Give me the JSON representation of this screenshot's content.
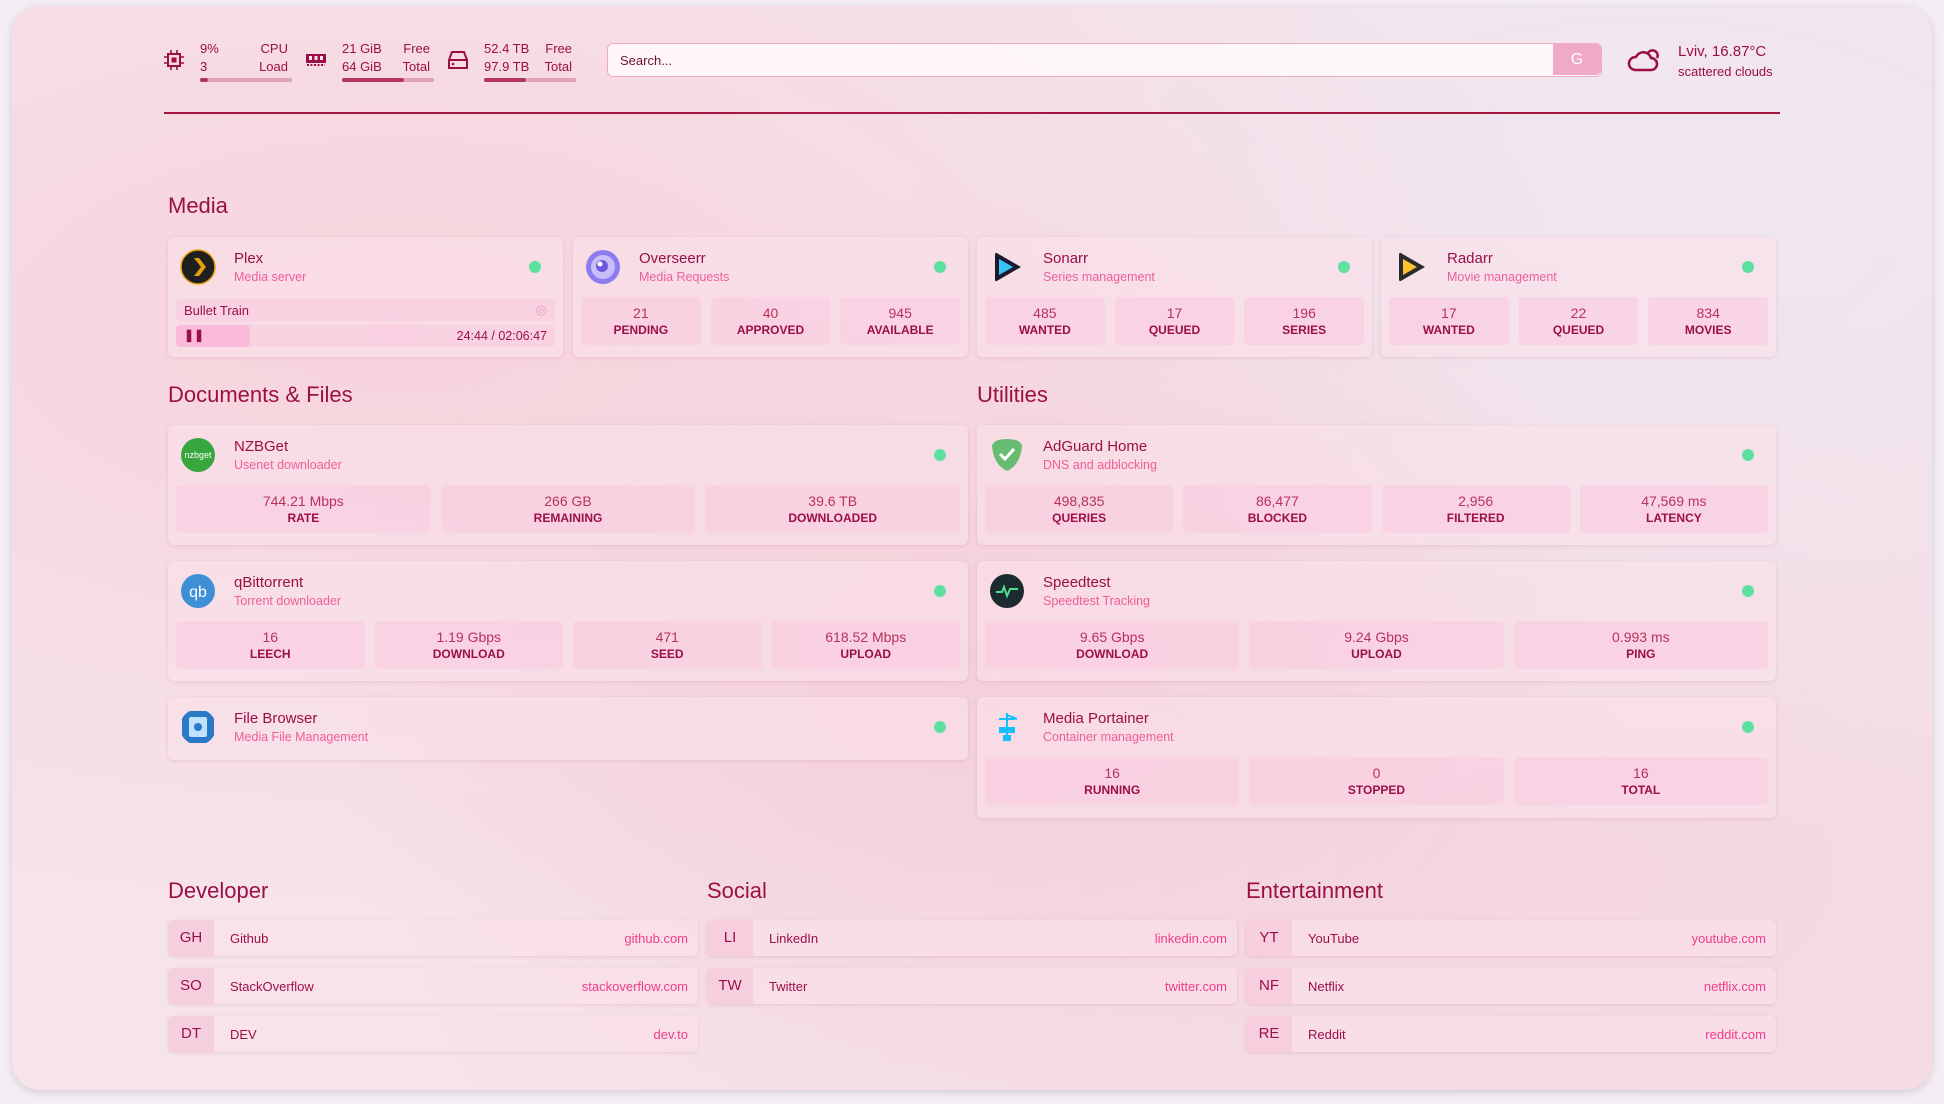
{
  "header": {
    "cpu": {
      "value": "9%",
      "load": "3",
      "label1": "CPU",
      "label2": "Load",
      "percent": 9,
      "icon": "cpu-icon"
    },
    "memory": {
      "free": "21 GiB",
      "total": "64 GiB",
      "label1": "Free",
      "label2": "Total",
      "percent": 67,
      "icon": "memory-icon"
    },
    "disk": {
      "free": "52.4 TB",
      "total": "97.9 TB",
      "label1": "Free",
      "label2": "Total",
      "percent": 46,
      "icon": "disk-icon"
    },
    "search": {
      "placeholder": "Search...",
      "button": "G"
    },
    "weather": {
      "location": "Lviv, 16.87°C",
      "condition": "scattered clouds",
      "icon": "cloud-sun-icon"
    }
  },
  "sections": {
    "media": "Media",
    "documents": "Documents & Files",
    "utilities": "Utilities",
    "developer": "Developer",
    "social": "Social",
    "entertainment": "Entertainment"
  },
  "media": [
    {
      "title": "Plex",
      "sub": "Media server",
      "now_playing": "Bullet Train",
      "time": "24:44 / 02:06:47",
      "progress": 19.5
    },
    {
      "title": "Overseerr",
      "sub": "Media Requests",
      "blocks": [
        {
          "v": "21",
          "l": "PENDING"
        },
        {
          "v": "40",
          "l": "APPROVED"
        },
        {
          "v": "945",
          "l": "AVAILABLE"
        }
      ]
    },
    {
      "title": "Sonarr",
      "sub": "Series management",
      "blocks": [
        {
          "v": "485",
          "l": "WANTED"
        },
        {
          "v": "17",
          "l": "QUEUED"
        },
        {
          "v": "196",
          "l": "SERIES"
        }
      ]
    },
    {
      "title": "Radarr",
      "sub": "Movie management",
      "blocks": [
        {
          "v": "17",
          "l": "WANTED"
        },
        {
          "v": "22",
          "l": "QUEUED"
        },
        {
          "v": "834",
          "l": "MOVIES"
        }
      ]
    }
  ],
  "documents": [
    {
      "title": "NZBGet",
      "sub": "Usenet downloader",
      "icon_text": "nzbget",
      "blocks": [
        {
          "v": "744.21 Mbps",
          "l": "RATE"
        },
        {
          "v": "266 GB",
          "l": "REMAINING"
        },
        {
          "v": "39.6 TB",
          "l": "DOWNLOADED"
        }
      ]
    },
    {
      "title": "qBittorrent",
      "sub": "Torrent downloader",
      "icon_text": "qb",
      "blocks": [
        {
          "v": "16",
          "l": "LEECH"
        },
        {
          "v": "1.19 Gbps",
          "l": "DOWNLOAD"
        },
        {
          "v": "471",
          "l": "SEED"
        },
        {
          "v": "618.52 Mbps",
          "l": "UPLOAD"
        }
      ]
    },
    {
      "title": "File Browser",
      "sub": "Media File Management"
    }
  ],
  "utilities": [
    {
      "title": "AdGuard Home",
      "sub": "DNS and adblocking",
      "blocks": [
        {
          "v": "498,835",
          "l": "QUERIES"
        },
        {
          "v": "86,477",
          "l": "BLOCKED"
        },
        {
          "v": "2,956",
          "l": "FILTERED"
        },
        {
          "v": "47,569 ms",
          "l": "LATENCY"
        }
      ]
    },
    {
      "title": "Speedtest",
      "sub": "Speedtest Tracking",
      "blocks": [
        {
          "v": "9.65 Gbps",
          "l": "DOWNLOAD"
        },
        {
          "v": "9.24 Gbps",
          "l": "UPLOAD"
        },
        {
          "v": "0.993 ms",
          "l": "PING"
        }
      ]
    },
    {
      "title": "Media Portainer",
      "sub": "Container management",
      "blocks": [
        {
          "v": "16",
          "l": "RUNNING"
        },
        {
          "v": "0",
          "l": "STOPPED"
        },
        {
          "v": "16",
          "l": "TOTAL"
        }
      ]
    }
  ],
  "bookmarks": {
    "developer": [
      {
        "ab": "GH",
        "name": "Github",
        "url": "github.com"
      },
      {
        "ab": "SO",
        "name": "StackOverflow",
        "url": "stackoverflow.com"
      },
      {
        "ab": "DT",
        "name": "DEV",
        "url": "dev.to"
      }
    ],
    "social": [
      {
        "ab": "LI",
        "name": "LinkedIn",
        "url": "linkedin.com"
      },
      {
        "ab": "TW",
        "name": "Twitter",
        "url": "twitter.com"
      }
    ],
    "entertainment": [
      {
        "ab": "YT",
        "name": "YouTube",
        "url": "youtube.com"
      },
      {
        "ab": "NF",
        "name": "Netflix",
        "url": "netflix.com"
      },
      {
        "ab": "RE",
        "name": "Reddit",
        "url": "reddit.com"
      }
    ]
  },
  "colors": {
    "accent": "#9b0f47",
    "link": "#ef3c8c",
    "status_ok": "#5de0a0"
  }
}
